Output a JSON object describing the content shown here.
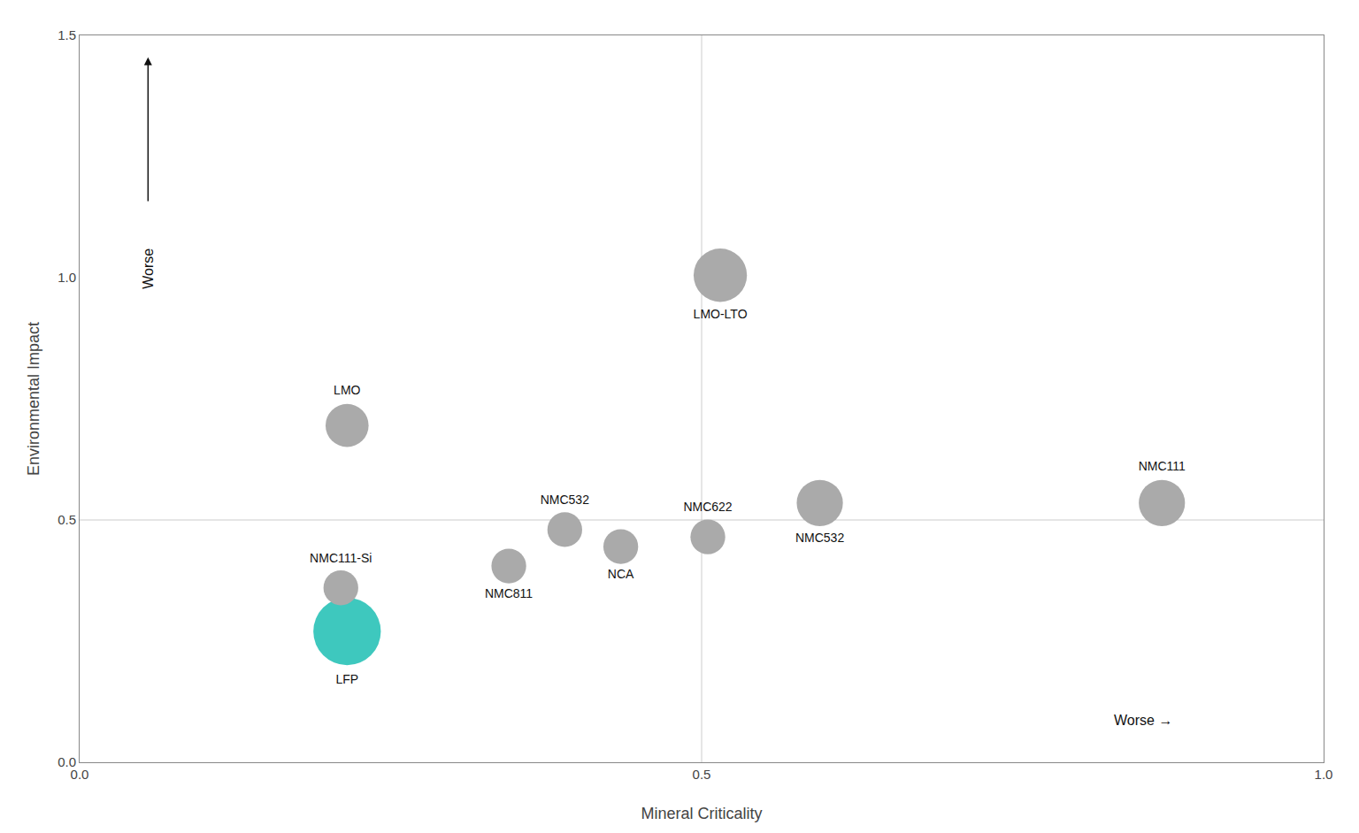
{
  "chart_data": {
    "type": "scatter",
    "xlabel": "Mineral Criticality",
    "ylabel": "Environmental Impact",
    "labels": [
      "LFP",
      "LMO",
      "LMO-LTO",
      "NMC111-Si",
      "NMC811",
      "NMC532",
      "NCA",
      "NMC622",
      "NMC532",
      "NMC111"
    ],
    "x": [
      0.215,
      0.215,
      0.515,
      0.21,
      0.345,
      0.39,
      0.435,
      0.505,
      0.595,
      0.87
    ],
    "values": [
      0.27,
      0.695,
      1.005,
      0.36,
      0.405,
      0.48,
      0.445,
      0.465,
      0.535,
      0.535
    ],
    "sizes": [
      3200,
      1300,
      2000,
      850,
      850,
      850,
      850,
      850,
      1500,
      1500
    ],
    "colors": [
      "#3ec8be",
      "#aaaaaa",
      "#aaaaaa",
      "#aaaaaa",
      "#aaaaaa",
      "#aaaaaa",
      "#aaaaaa",
      "#aaaaaa",
      "#aaaaaa",
      "#aaaaaa"
    ],
    "xlim": [
      0,
      1
    ],
    "ylim": [
      0,
      1.5
    ],
    "xticks": [
      {
        "value": 0,
        "label": "0.0"
      },
      0.5,
      {
        "value": 1,
        "label": "1.0"
      }
    ],
    "yticks": [
      {
        "value": 0,
        "label": "0.0"
      },
      0.5,
      {
        "value": 1,
        "label": "1.0"
      },
      1.5
    ],
    "quadrant_lines": {
      "x": 0.5,
      "y": 0.5
    },
    "annotations": [
      {
        "text": "Worse →",
        "axis": "x"
      },
      {
        "text": "Worse",
        "axis": "y"
      }
    ],
    "grid": false
  }
}
